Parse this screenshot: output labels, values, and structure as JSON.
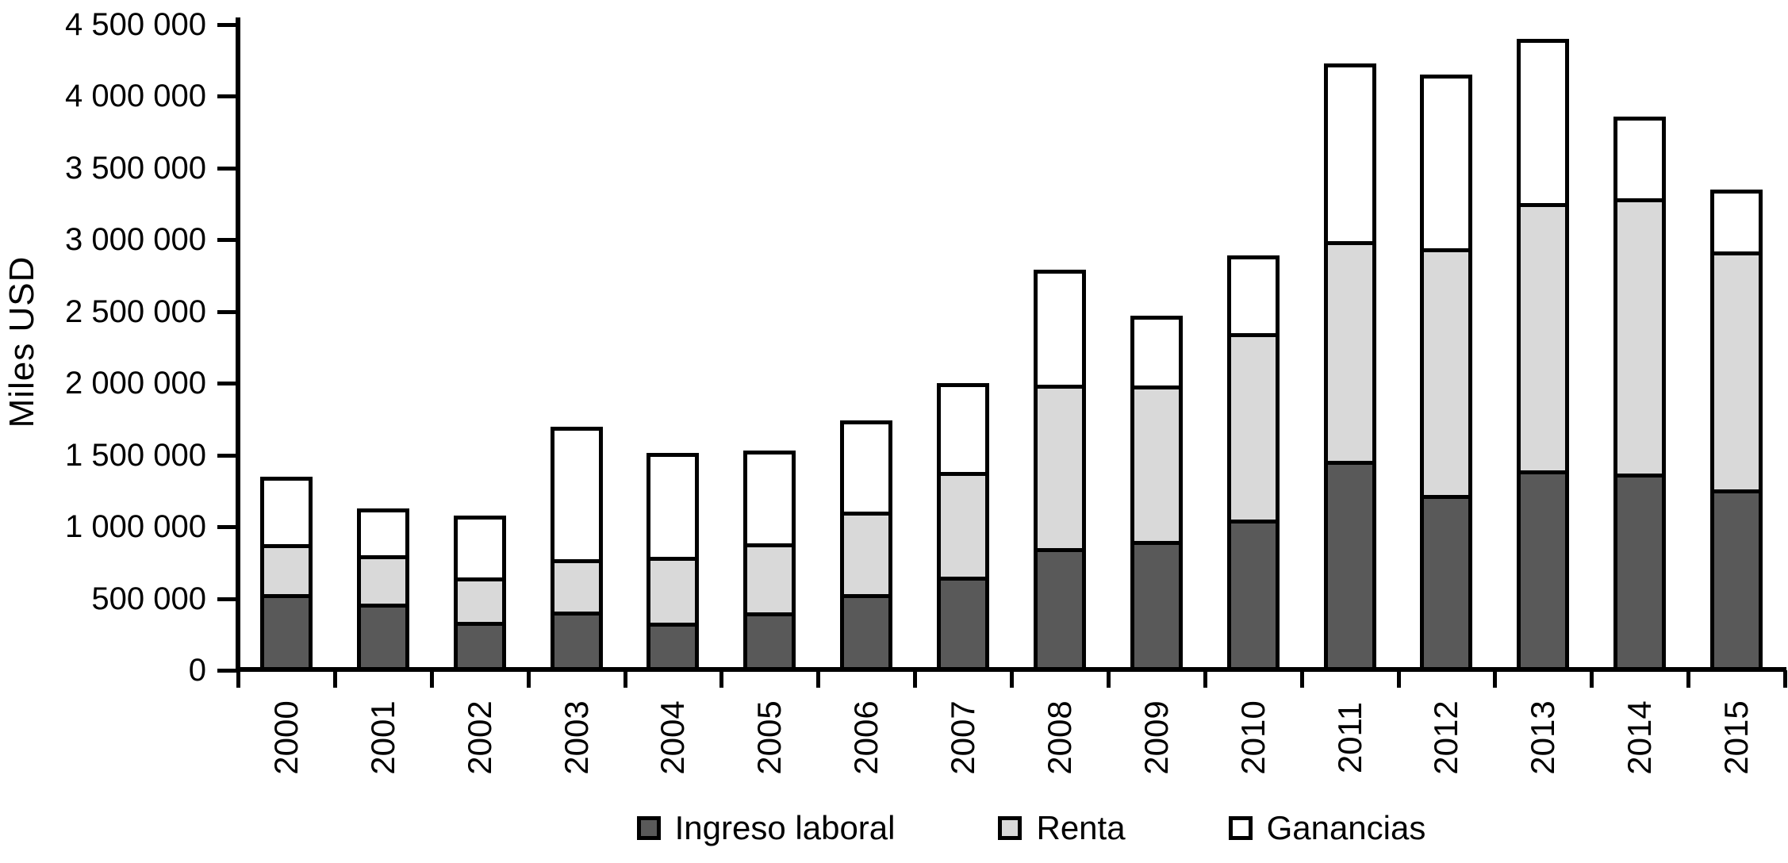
{
  "chart_data": {
    "type": "bar",
    "stacked": true,
    "title": "",
    "xlabel": "",
    "ylabel": "Miles USD",
    "ylim": [
      0,
      4500000
    ],
    "ytick_step": 500000,
    "ytick_labels_bottom_up": [
      "0",
      "500 000",
      "1 000 000",
      "1 500 000",
      "2 000 000",
      "2 500 000",
      "3 000 000",
      "3 500 000",
      "4 000 000",
      "4 500 000"
    ],
    "grid": false,
    "legend_position": "bottom",
    "categories": [
      "2000",
      "2001",
      "2002",
      "2003",
      "2004",
      "2005",
      "2006",
      "2007",
      "2008",
      "2009",
      "2010",
      "2011",
      "2012",
      "2013",
      "2014",
      "2015"
    ],
    "series": [
      {
        "name": "Ingreso laboral",
        "color": "#595959",
        "values": [
          500000,
          435000,
          305000,
          370000,
          295000,
          370000,
          500000,
          620000,
          820000,
          870000,
          1020000,
          1430000,
          1190000,
          1360000,
          1340000,
          1230000
        ]
      },
      {
        "name": "Renta",
        "color": "#d9d9d9",
        "values": [
          340000,
          330000,
          295000,
          350000,
          445000,
          470000,
          565000,
          720000,
          1130000,
          1080000,
          1300000,
          1520000,
          1710000,
          1860000,
          1920000,
          1660000
        ]
      },
      {
        "name": "Ganancias",
        "color": "#ffffff",
        "values": [
          460000,
          315000,
          430000,
          930000,
          725000,
          640000,
          625000,
          610000,
          790000,
          470000,
          520000,
          1230000,
          1200000,
          1130000,
          550000,
          410000
        ]
      }
    ],
    "totals": [
      1300000,
      1080000,
      1030000,
      1650000,
      1465000,
      1480000,
      1690000,
      1950000,
      2740000,
      2420000,
      2840000,
      4180000,
      4100000,
      4350000,
      3810000,
      3300000
    ]
  },
  "colors": {
    "axis": "#000000",
    "text": "#000000",
    "background": "#ffffff",
    "bar_border": "#000000"
  }
}
